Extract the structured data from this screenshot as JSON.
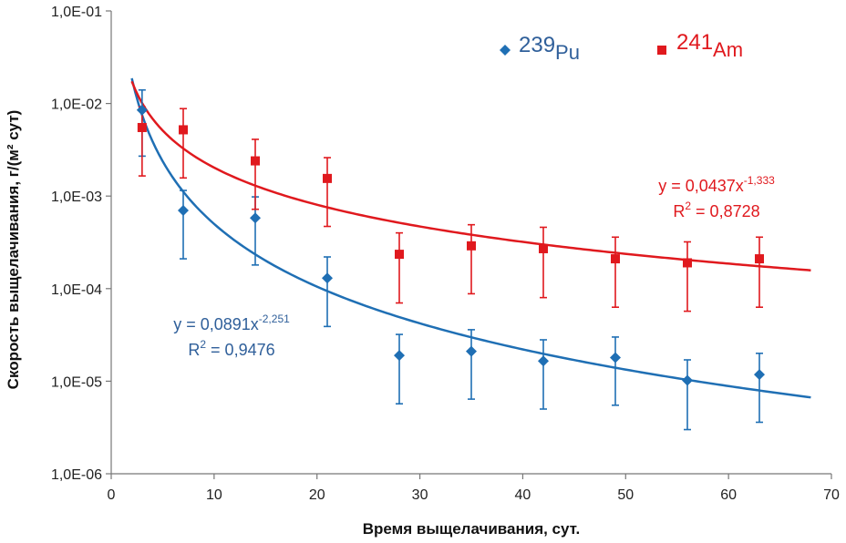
{
  "chart_data": {
    "type": "scatter",
    "xlabel": "Время выщелачивания, сут.",
    "ylabel": "Скорость выщелачивания, г/(м² сут)",
    "xlim": [
      0,
      70
    ],
    "ylim": [
      1e-06,
      0.1
    ],
    "yscale": "log",
    "x_ticks": [
      "0",
      "10",
      "20",
      "30",
      "40",
      "50",
      "60",
      "70"
    ],
    "y_ticks": [
      "1,0E-06",
      "1,0E-05",
      "1,0E-04",
      "1,0E-03",
      "1,0E-02",
      "1,0E-01"
    ],
    "grid": false,
    "legend_position": "top-right",
    "series": [
      {
        "name_mass": "239",
        "name_element": "Pu",
        "marker": "diamond",
        "color": "#1f6fb4",
        "x": [
          3,
          7,
          14,
          21,
          28,
          35,
          42,
          49,
          56,
          63
        ],
        "y": [
          0.0085,
          0.0007,
          0.00058,
          0.00013,
          1.9e-05,
          2.1e-05,
          1.65e-05,
          1.8e-05,
          1.02e-05,
          1.18e-05
        ],
        "err_low": [
          0.0027,
          0.00021,
          0.00018,
          3.9e-05,
          5.7e-06,
          6.4e-06,
          5e-06,
          5.5e-06,
          3e-06,
          3.6e-06
        ],
        "err_high": [
          0.014,
          0.00115,
          0.00098,
          0.00022,
          3.2e-05,
          3.6e-05,
          2.8e-05,
          3e-05,
          1.7e-05,
          2e-05
        ],
        "trend": {
          "a": 0.0891,
          "b": -2.251,
          "x_range": [
            2,
            68
          ],
          "eq_prefix": "y = 0,0891x",
          "eq_exp": "-2,251",
          "r2_prefix": "R",
          "r2_sup": "2",
          "r2_value": " = 0,9476"
        }
      },
      {
        "name_mass": "241",
        "name_element": "Am",
        "marker": "square",
        "color": "#e0191e",
        "x": [
          3,
          7,
          14,
          21,
          28,
          35,
          42,
          49,
          56,
          63
        ],
        "y": [
          0.0055,
          0.0052,
          0.0024,
          0.00155,
          0.000235,
          0.00029,
          0.00027,
          0.00021,
          0.00019,
          0.00021
        ],
        "err_low": [
          0.00165,
          0.00157,
          0.00072,
          0.00047,
          7e-05,
          8.8e-05,
          8e-05,
          6.3e-05,
          5.7e-05,
          6.3e-05
        ],
        "err_high": [
          0.0092,
          0.0088,
          0.0041,
          0.0026,
          0.0004,
          0.00049,
          0.00046,
          0.00036,
          0.00032,
          0.00036
        ],
        "trend": {
          "a": 0.0437,
          "b": -1.333,
          "x_range": [
            2,
            68
          ],
          "eq_prefix": "y = 0,0437x",
          "eq_exp": "-1,333",
          "r2_prefix": "R",
          "r2_sup": "2",
          "r2_value": " = 0,8728"
        }
      }
    ]
  }
}
